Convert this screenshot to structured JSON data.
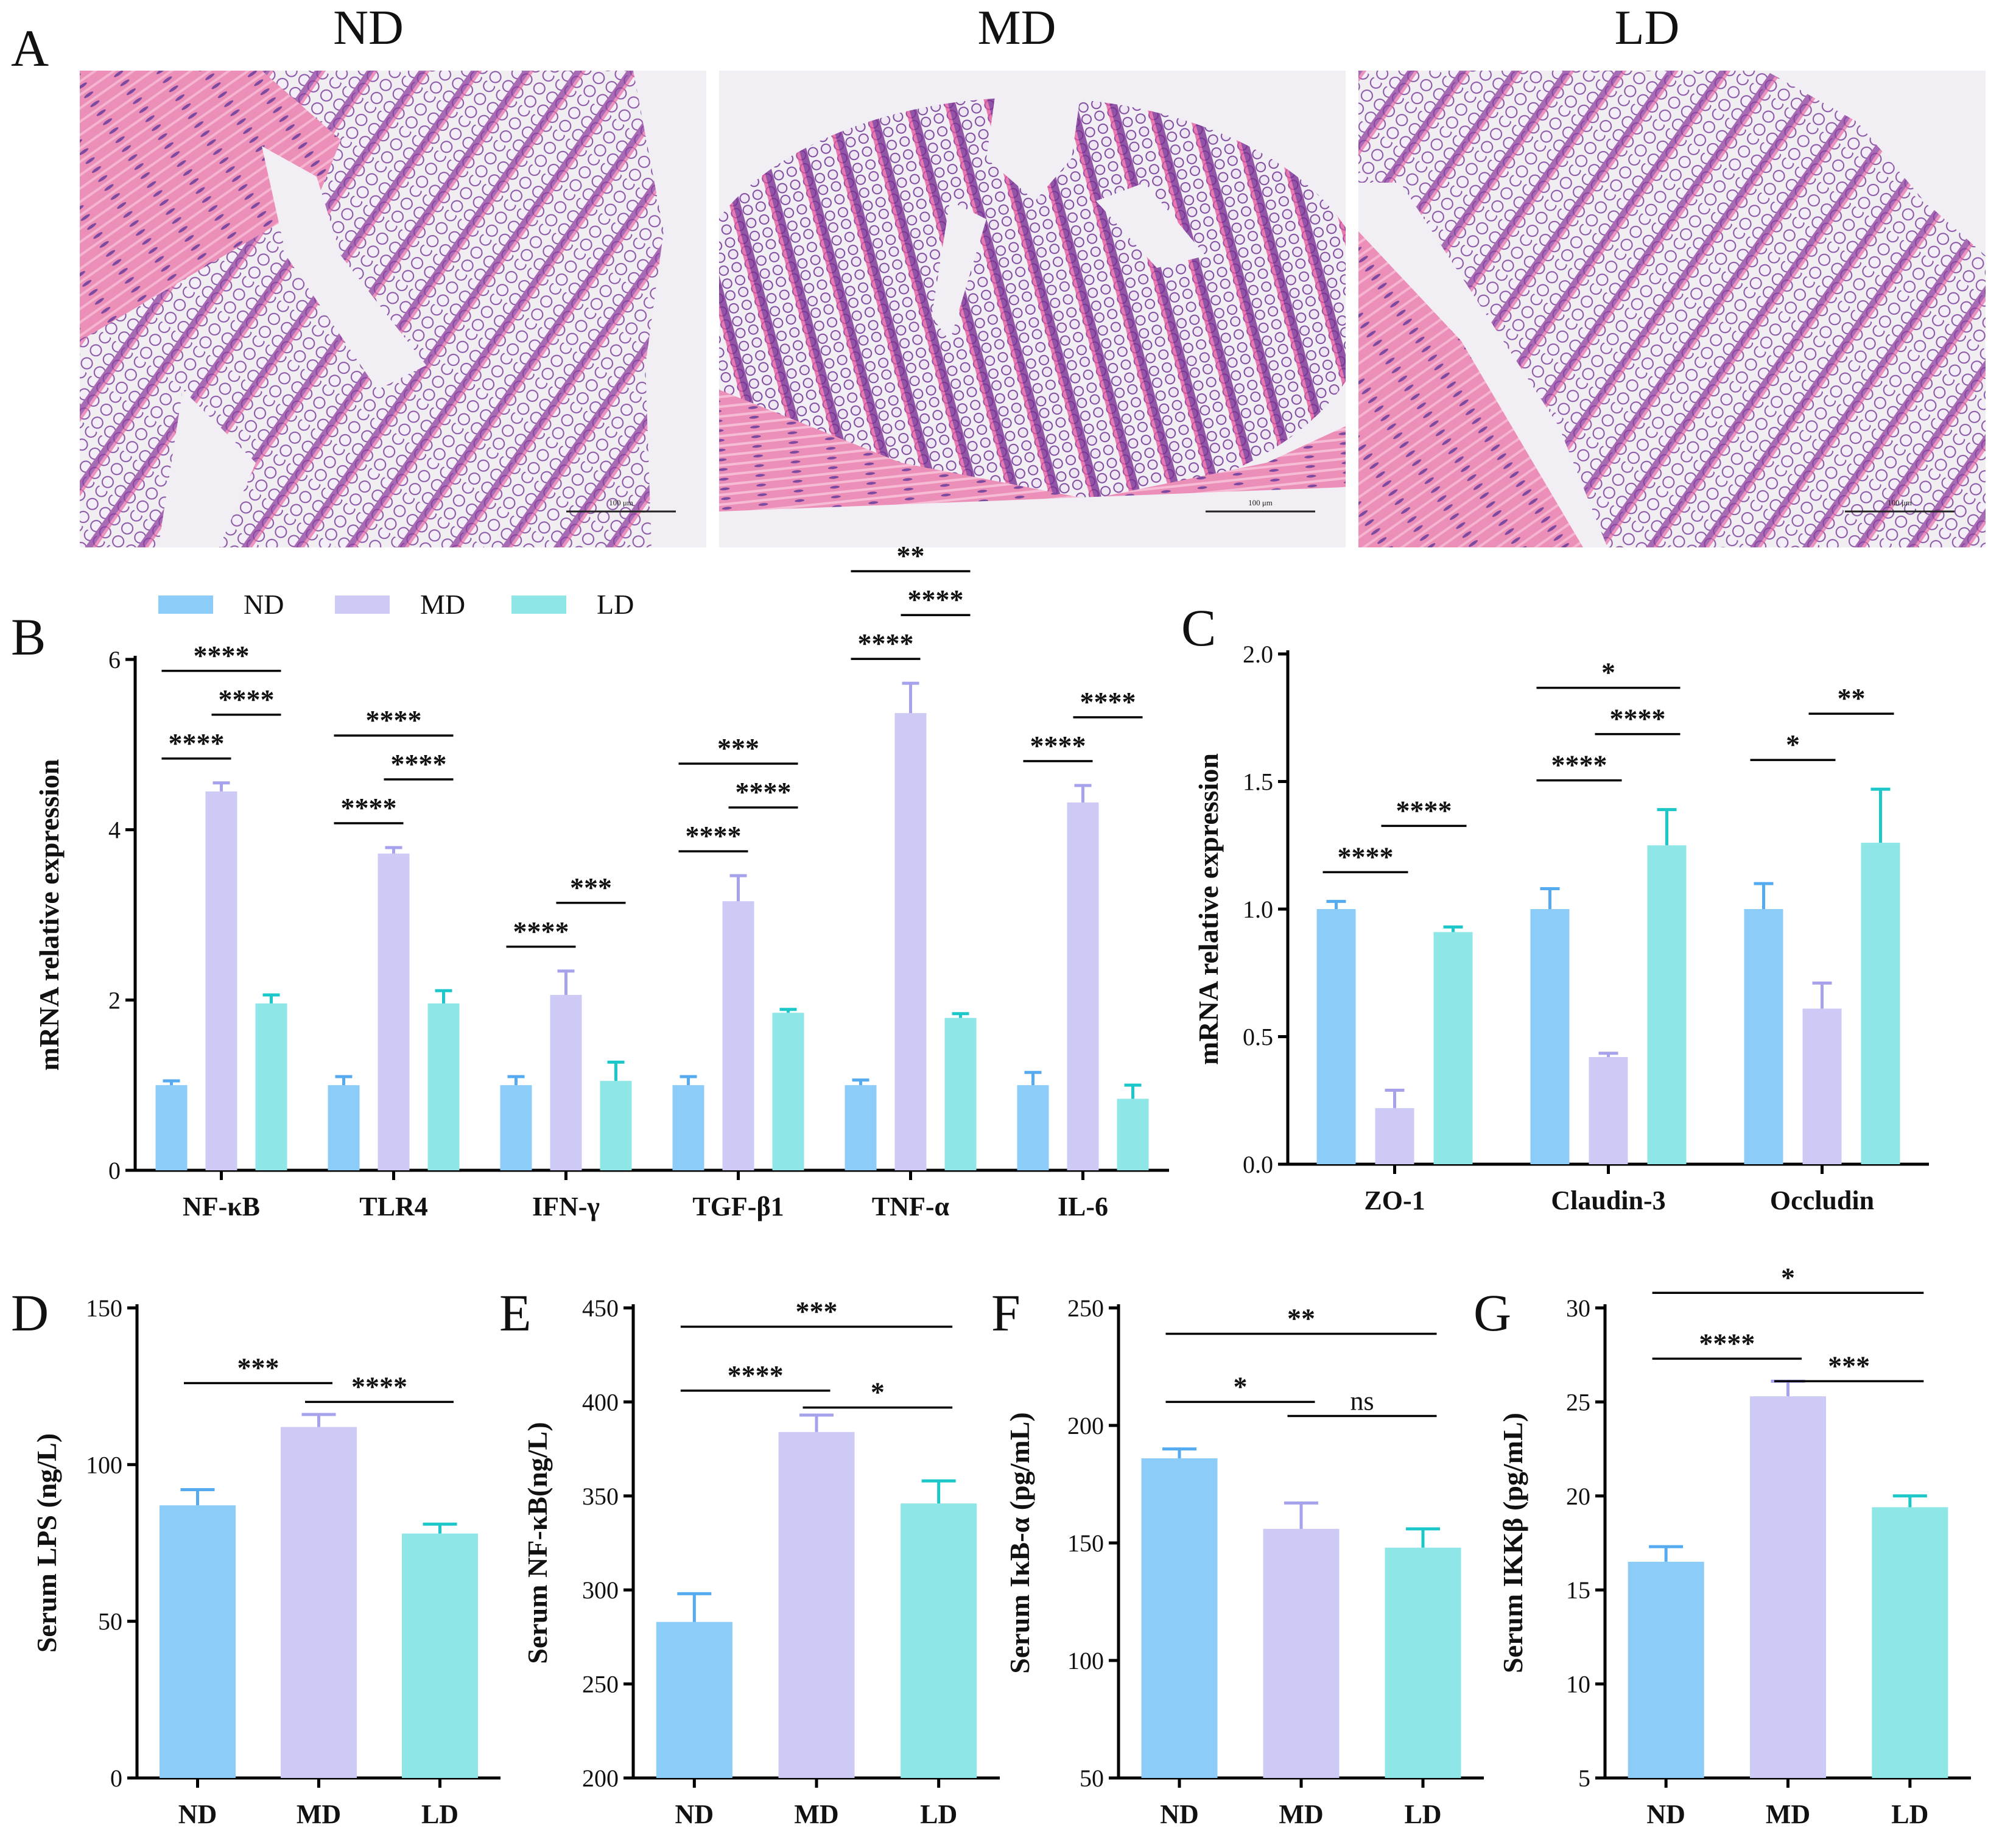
{
  "figure": {
    "panel_a_letter": "A",
    "colors": {
      "ND": "#8cccf8",
      "MD": "#cdcaf6",
      "LD": "#8ee7e6",
      "ND_err": "#55aaf0",
      "MD_err": "#a6a2ec",
      "LD_err": "#1cc7c9",
      "axis": "#000000"
    },
    "histology": [
      {
        "title": "ND",
        "scale_label": "100 μm",
        "scene": "left-muscle"
      },
      {
        "title": "MD",
        "scale_label": "100 μm",
        "scene": "bottom-muscle"
      },
      {
        "title": "LD",
        "scale_label": "100 μm",
        "scene": "left-muscle-wide"
      }
    ]
  },
  "chart_data": [
    {
      "panel": "B",
      "type": "bar",
      "legend": [
        "ND",
        "MD",
        "LD"
      ],
      "categories": [
        "NF-κB",
        "TLR4",
        "IFN-γ",
        "TGF-β1",
        "TNF-α",
        "IL-6"
      ],
      "ylabel": "mRNA relative expression",
      "ylim": [
        0,
        6
      ],
      "yticks": [
        0,
        2,
        4,
        6
      ],
      "ytick_labels": [
        "0",
        "2",
        "4",
        "6"
      ],
      "series": [
        {
          "name": "ND",
          "values": [
            1.0,
            1.0,
            1.0,
            1.0,
            1.0,
            1.0
          ],
          "errors": [
            0.05,
            0.1,
            0.1,
            0.1,
            0.06,
            0.15
          ]
        },
        {
          "name": "MD",
          "values": [
            4.45,
            3.72,
            2.06,
            3.16,
            5.37,
            4.32
          ],
          "errors": [
            0.1,
            0.07,
            0.28,
            0.3,
            0.35,
            0.2
          ]
        },
        {
          "name": "LD",
          "values": [
            1.96,
            1.96,
            1.05,
            1.85,
            1.79,
            0.84
          ],
          "errors": [
            0.1,
            0.15,
            0.22,
            0.04,
            0.05,
            0.16
          ]
        }
      ],
      "significance": [
        {
          "category": 0,
          "from": "ND",
          "to": "MD",
          "label": "****",
          "level": 0
        },
        {
          "category": 0,
          "from": "MD",
          "to": "LD",
          "label": "****",
          "level": 1
        },
        {
          "category": 0,
          "from": "ND",
          "to": "LD",
          "label": "****",
          "level": 2
        },
        {
          "category": 1,
          "from": "ND",
          "to": "MD",
          "label": "****",
          "level": 0
        },
        {
          "category": 1,
          "from": "MD",
          "to": "LD",
          "label": "****",
          "level": 1
        },
        {
          "category": 1,
          "from": "ND",
          "to": "LD",
          "label": "****",
          "level": 2
        },
        {
          "category": 2,
          "from": "ND",
          "to": "MD",
          "label": "****",
          "level": 0
        },
        {
          "category": 2,
          "from": "MD",
          "to": "LD",
          "label": "***",
          "level": 1
        },
        {
          "category": 3,
          "from": "ND",
          "to": "MD",
          "label": "****",
          "level": 0
        },
        {
          "category": 3,
          "from": "MD",
          "to": "LD",
          "label": "****",
          "level": 1
        },
        {
          "category": 3,
          "from": "ND",
          "to": "LD",
          "label": "***",
          "level": 2
        },
        {
          "category": 4,
          "from": "ND",
          "to": "MD",
          "label": "****",
          "level": 0
        },
        {
          "category": 4,
          "from": "MD",
          "to": "LD",
          "label": "****",
          "level": 1
        },
        {
          "category": 4,
          "from": "ND",
          "to": "LD",
          "label": "**",
          "level": 2
        },
        {
          "category": 5,
          "from": "ND",
          "to": "MD",
          "label": "****",
          "level": 0
        },
        {
          "category": 5,
          "from": "MD",
          "to": "LD",
          "label": "****",
          "level": 1
        }
      ]
    },
    {
      "panel": "C",
      "type": "bar",
      "categories": [
        "ZO-1",
        "Claudin-3",
        "Occludin"
      ],
      "ylabel": "mRNA relative expression",
      "ylim": [
        0,
        2.0
      ],
      "yticks": [
        0,
        0.5,
        1.0,
        1.5,
        2.0
      ],
      "ytick_labels": [
        "0.0",
        "0.5",
        "1.0",
        "1.5",
        "2.0"
      ],
      "series": [
        {
          "name": "ND",
          "values": [
            1.0,
            1.0,
            1.0
          ],
          "errors": [
            0.03,
            0.08,
            0.1
          ]
        },
        {
          "name": "MD",
          "values": [
            0.22,
            0.42,
            0.61
          ],
          "errors": [
            0.07,
            0.015,
            0.1
          ]
        },
        {
          "name": "LD",
          "values": [
            0.91,
            1.25,
            1.26
          ],
          "errors": [
            0.02,
            0.14,
            0.21
          ]
        }
      ],
      "significance": [
        {
          "category": 0,
          "from": "ND",
          "to": "MD",
          "label": "****",
          "level": 0
        },
        {
          "category": 0,
          "from": "MD",
          "to": "LD",
          "label": "****",
          "level": 1
        },
        {
          "category": 1,
          "from": "ND",
          "to": "MD",
          "label": "****",
          "level": 0
        },
        {
          "category": 1,
          "from": "MD",
          "to": "LD",
          "label": "****",
          "level": 1
        },
        {
          "category": 1,
          "from": "ND",
          "to": "LD",
          "label": "*",
          "level": 2
        },
        {
          "category": 2,
          "from": "ND",
          "to": "MD",
          "label": "*",
          "level": 0
        },
        {
          "category": 2,
          "from": "MD",
          "to": "LD",
          "label": "**",
          "level": 1
        }
      ]
    },
    {
      "panel": "D",
      "type": "bar",
      "categories": [
        "ND",
        "MD",
        "LD"
      ],
      "ylabel": "Serum LPS (ng/L)",
      "ylim": [
        0,
        150
      ],
      "yticks": [
        0,
        50,
        100,
        150
      ],
      "ytick_labels": [
        "0",
        "50",
        "100",
        "150"
      ],
      "values": [
        87,
        112,
        78
      ],
      "errors": [
        5,
        4,
        3
      ],
      "significance": [
        {
          "from": 0,
          "to": 1,
          "label": "***",
          "value": 126
        },
        {
          "from": 1,
          "to": 2,
          "label": "****",
          "value": 120
        }
      ]
    },
    {
      "panel": "E",
      "type": "bar",
      "categories": [
        "ND",
        "MD",
        "LD"
      ],
      "ylabel": "Serum  NF-κB(ng/L)",
      "ylim": [
        200,
        450
      ],
      "yticks": [
        200,
        250,
        300,
        350,
        400,
        450
      ],
      "ytick_labels": [
        "200",
        "250",
        "300",
        "350",
        "400",
        "450"
      ],
      "values": [
        283,
        384,
        346
      ],
      "errors": [
        15,
        9,
        12
      ],
      "significance": [
        {
          "from": 0,
          "to": 1,
          "label": "****",
          "value": 406
        },
        {
          "from": 1,
          "to": 2,
          "label": "*",
          "value": 397
        },
        {
          "from": 0,
          "to": 2,
          "label": "***",
          "value": 440
        }
      ]
    },
    {
      "panel": "F",
      "type": "bar",
      "categories": [
        "ND",
        "MD",
        "LD"
      ],
      "ylabel": "Serum IκB-α (pg/mL)",
      "ylim": [
        50,
        250
      ],
      "yticks": [
        50,
        100,
        150,
        200,
        250
      ],
      "ytick_labels": [
        "50",
        "100",
        "150",
        "200",
        "250"
      ],
      "values": [
        186,
        156,
        148
      ],
      "errors": [
        4,
        11,
        8
      ],
      "significance": [
        {
          "from": 0,
          "to": 1,
          "label": "*",
          "value": 210
        },
        {
          "from": 1,
          "to": 2,
          "label": "ns",
          "value": 204
        },
        {
          "from": 0,
          "to": 2,
          "label": "**",
          "value": 239
        }
      ]
    },
    {
      "panel": "G",
      "type": "bar",
      "categories": [
        "ND",
        "MD",
        "LD"
      ],
      "ylabel": "Serum IKKβ (pg/mL)",
      "ylim": [
        5,
        30
      ],
      "yticks": [
        5,
        10,
        15,
        20,
        25,
        30
      ],
      "ytick_labels": [
        "5",
        "10",
        "15",
        "20",
        "25",
        "30"
      ],
      "values": [
        16.5,
        25.3,
        19.4
      ],
      "errors": [
        0.8,
        0.8,
        0.6
      ],
      "significance": [
        {
          "from": 0,
          "to": 1,
          "label": "****",
          "value": 27.3
        },
        {
          "from": 1,
          "to": 2,
          "label": "***",
          "value": 26.1
        },
        {
          "from": 0,
          "to": 2,
          "label": "*",
          "value": 30.8
        }
      ]
    }
  ]
}
